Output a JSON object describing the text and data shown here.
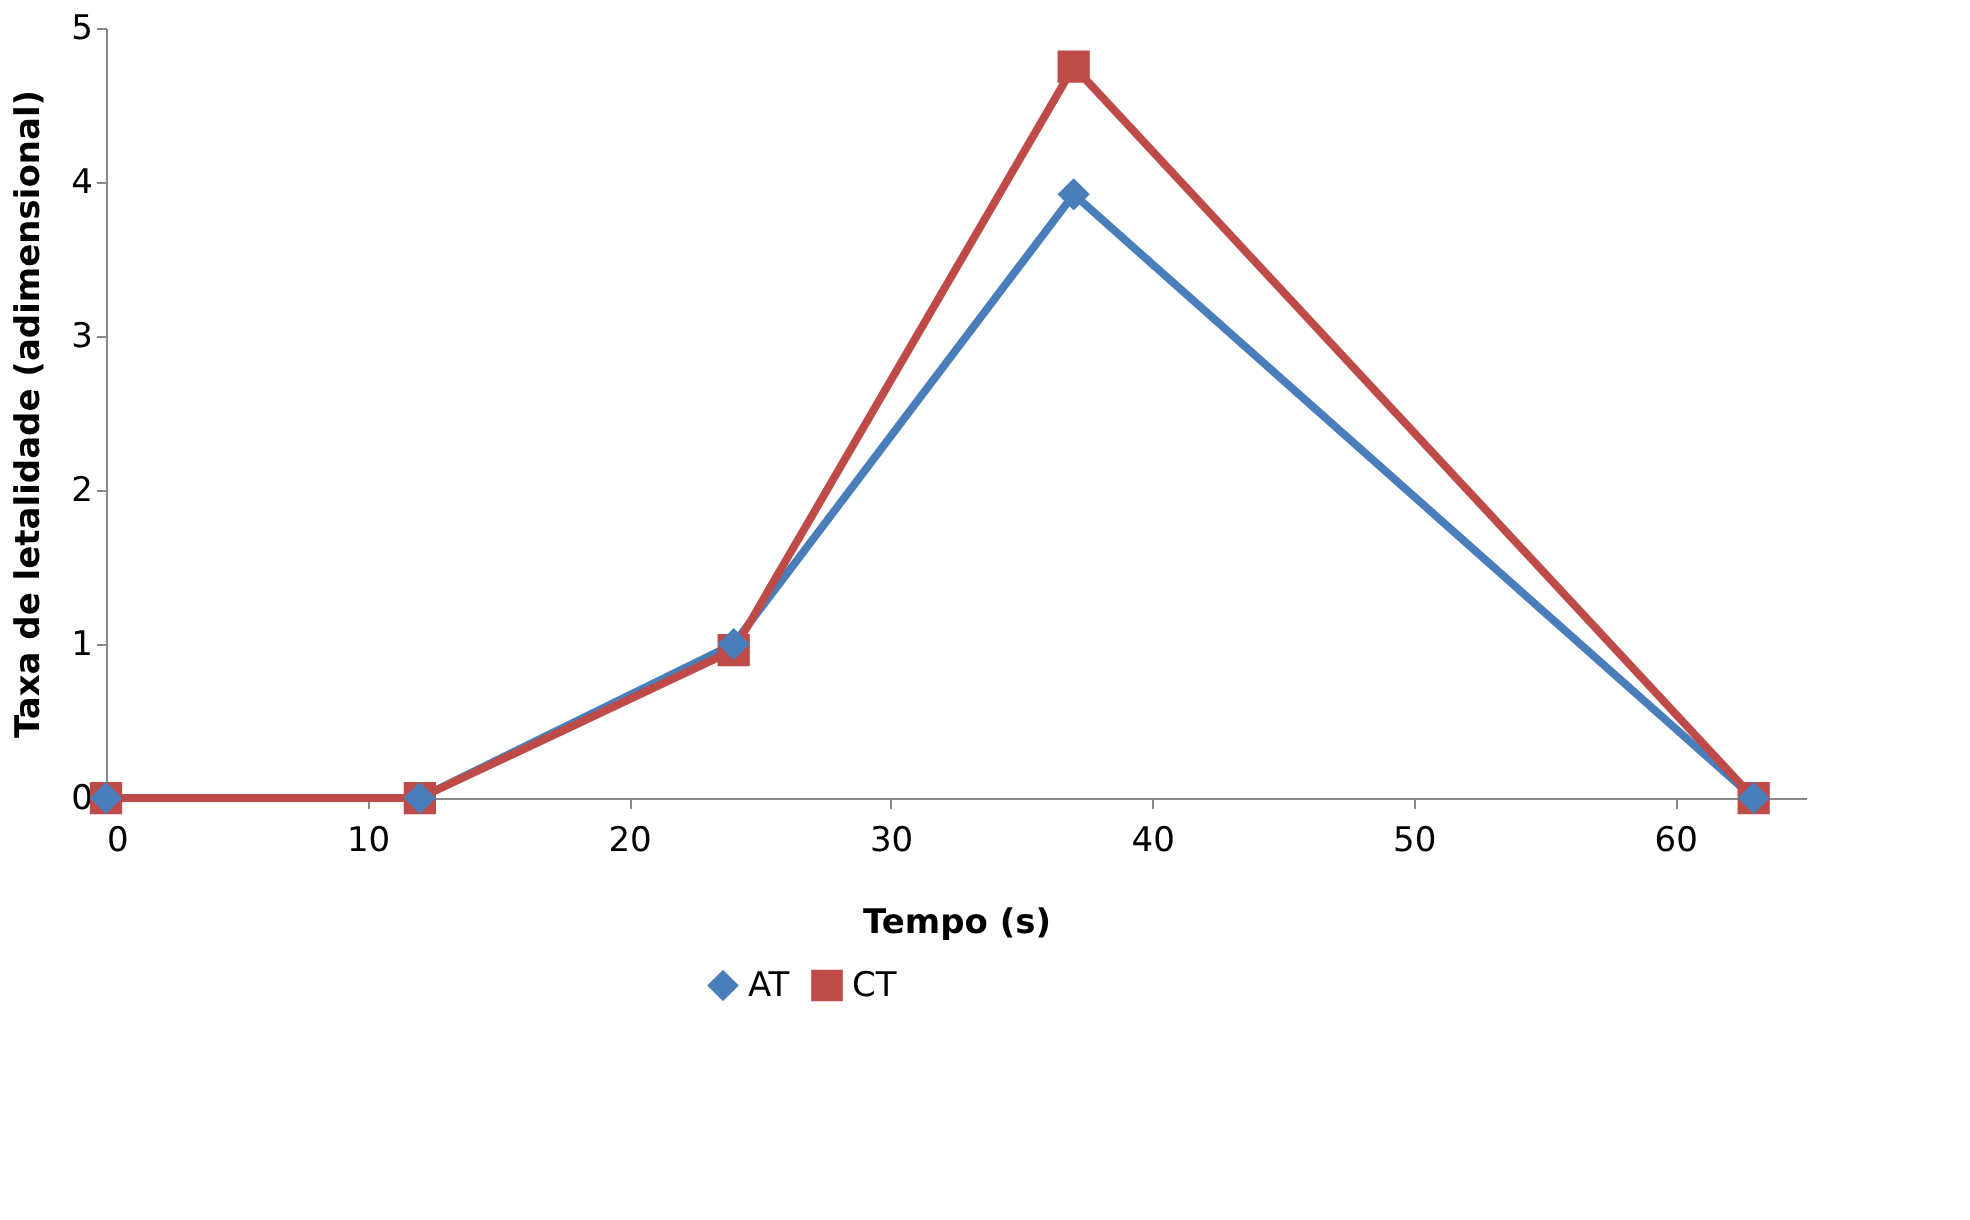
{
  "chart_data": {
    "type": "line",
    "xlabel": "Tempo (s)",
    "ylabel": "Taxa de letalidade (adimensional)",
    "x": [
      0,
      12,
      24,
      37,
      63
    ],
    "series": [
      {
        "name": "AT",
        "color": "#4a7ebb",
        "marker": "diamond",
        "values": [
          0,
          0,
          1.0,
          3.92,
          0
        ]
      },
      {
        "name": "CT",
        "color": "#be4b48",
        "marker": "square",
        "values": [
          0,
          0,
          0.96,
          4.75,
          0
        ]
      }
    ],
    "xlim": [
      0,
      65
    ],
    "xticks": [
      0,
      10,
      20,
      30,
      40,
      50,
      60
    ],
    "ylim": [
      0,
      5
    ],
    "yticks": [
      0,
      1,
      2,
      3,
      4,
      5
    ],
    "grid": false,
    "legend": "bottom",
    "line_style": "solid"
  }
}
